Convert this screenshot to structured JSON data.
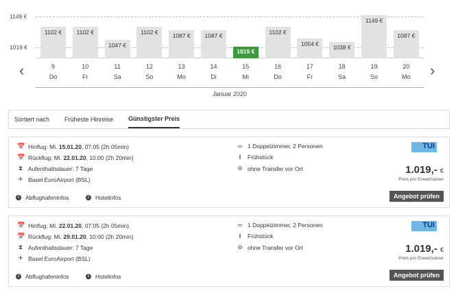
{
  "chart_data": {
    "type": "bar",
    "yticks": [
      "1149 €",
      "1019 €"
    ],
    "ytick_values": [
      1149,
      1019
    ],
    "categories": [
      {
        "day": "9",
        "weekday": "Do"
      },
      {
        "day": "10",
        "weekday": "Fr"
      },
      {
        "day": "11",
        "weekday": "Sa"
      },
      {
        "day": "12",
        "weekday": "So"
      },
      {
        "day": "13",
        "weekday": "Mo"
      },
      {
        "day": "14",
        "weekday": "Di"
      },
      {
        "day": "15",
        "weekday": "Mi"
      },
      {
        "day": "16",
        "weekday": "Do"
      },
      {
        "day": "17",
        "weekday": "Fr"
      },
      {
        "day": "18",
        "weekday": "Sa"
      },
      {
        "day": "19",
        "weekday": "So"
      },
      {
        "day": "20",
        "weekday": "Mo"
      }
    ],
    "values": [
      1102,
      1102,
      1047,
      1102,
      1087,
      1087,
      1019,
      1102,
      1054,
      1038,
      1149,
      1087
    ],
    "labels": [
      "1102 €",
      "1102 €",
      "1047 €",
      "1102 €",
      "1087 €",
      "1087 €",
      "1019 €",
      "1102 €",
      "1054 €",
      "1038 €",
      "1149 €",
      "1087 €"
    ],
    "highlight_index": 6,
    "colors": {
      "bar": "#e2e2e2",
      "best": "#3c9a3c"
    },
    "xlabel": "Januar 2020"
  },
  "sort": {
    "label": "Sortiert nach",
    "options": [
      "Früheste Hinreise",
      "Günstigster Preis"
    ],
    "active": 1
  },
  "offers": [
    {
      "outbound_prefix": "Hinflug: Mi. ",
      "outbound_date": "15.01.20",
      "outbound_suffix": ", 07:05 (2h 05min)",
      "return_prefix": "Rückflug: Mi. ",
      "return_date": "22.01.20",
      "return_suffix": ", 10:00 (2h 20min)",
      "stay": "Aufenthaltsdauer: 7 Tage",
      "airport": "Basel EuroAirport (BSL)",
      "room": "1 Doppelzimmer, 2 Personen",
      "board": "Frühstück",
      "transfer": "ohne Transfer vor Ort",
      "operator": "TUI",
      "price": "1.019,-",
      "currency": "€",
      "price_note": "Preis pro Erwachsener",
      "cta": "Angebot prüfen",
      "links": [
        "Abflughafeninfos",
        "Hotelinfos"
      ]
    },
    {
      "outbound_prefix": "Hinflug: Mi. ",
      "outbound_date": "22.01.20",
      "outbound_suffix": ", 07:05 (2h 05min)",
      "return_prefix": "Rückflug: Mi. ",
      "return_date": "29.01.20",
      "return_suffix": ", 10:00 (2h 20min)",
      "stay": "Aufenthaltsdauer: 7 Tage",
      "airport": "Basel EuroAirport (BSL)",
      "room": "1 Doppelzimmer, 2 Personen",
      "board": "Frühstück",
      "transfer": "ohne Transfer vor Ort",
      "operator": "TUI",
      "price": "1.019,-",
      "currency": "€",
      "price_note": "Preis pro Erwachsener",
      "cta": "Angebot prüfen",
      "links": [
        "Abflughafeninfos",
        "Hotelinfos"
      ]
    }
  ]
}
